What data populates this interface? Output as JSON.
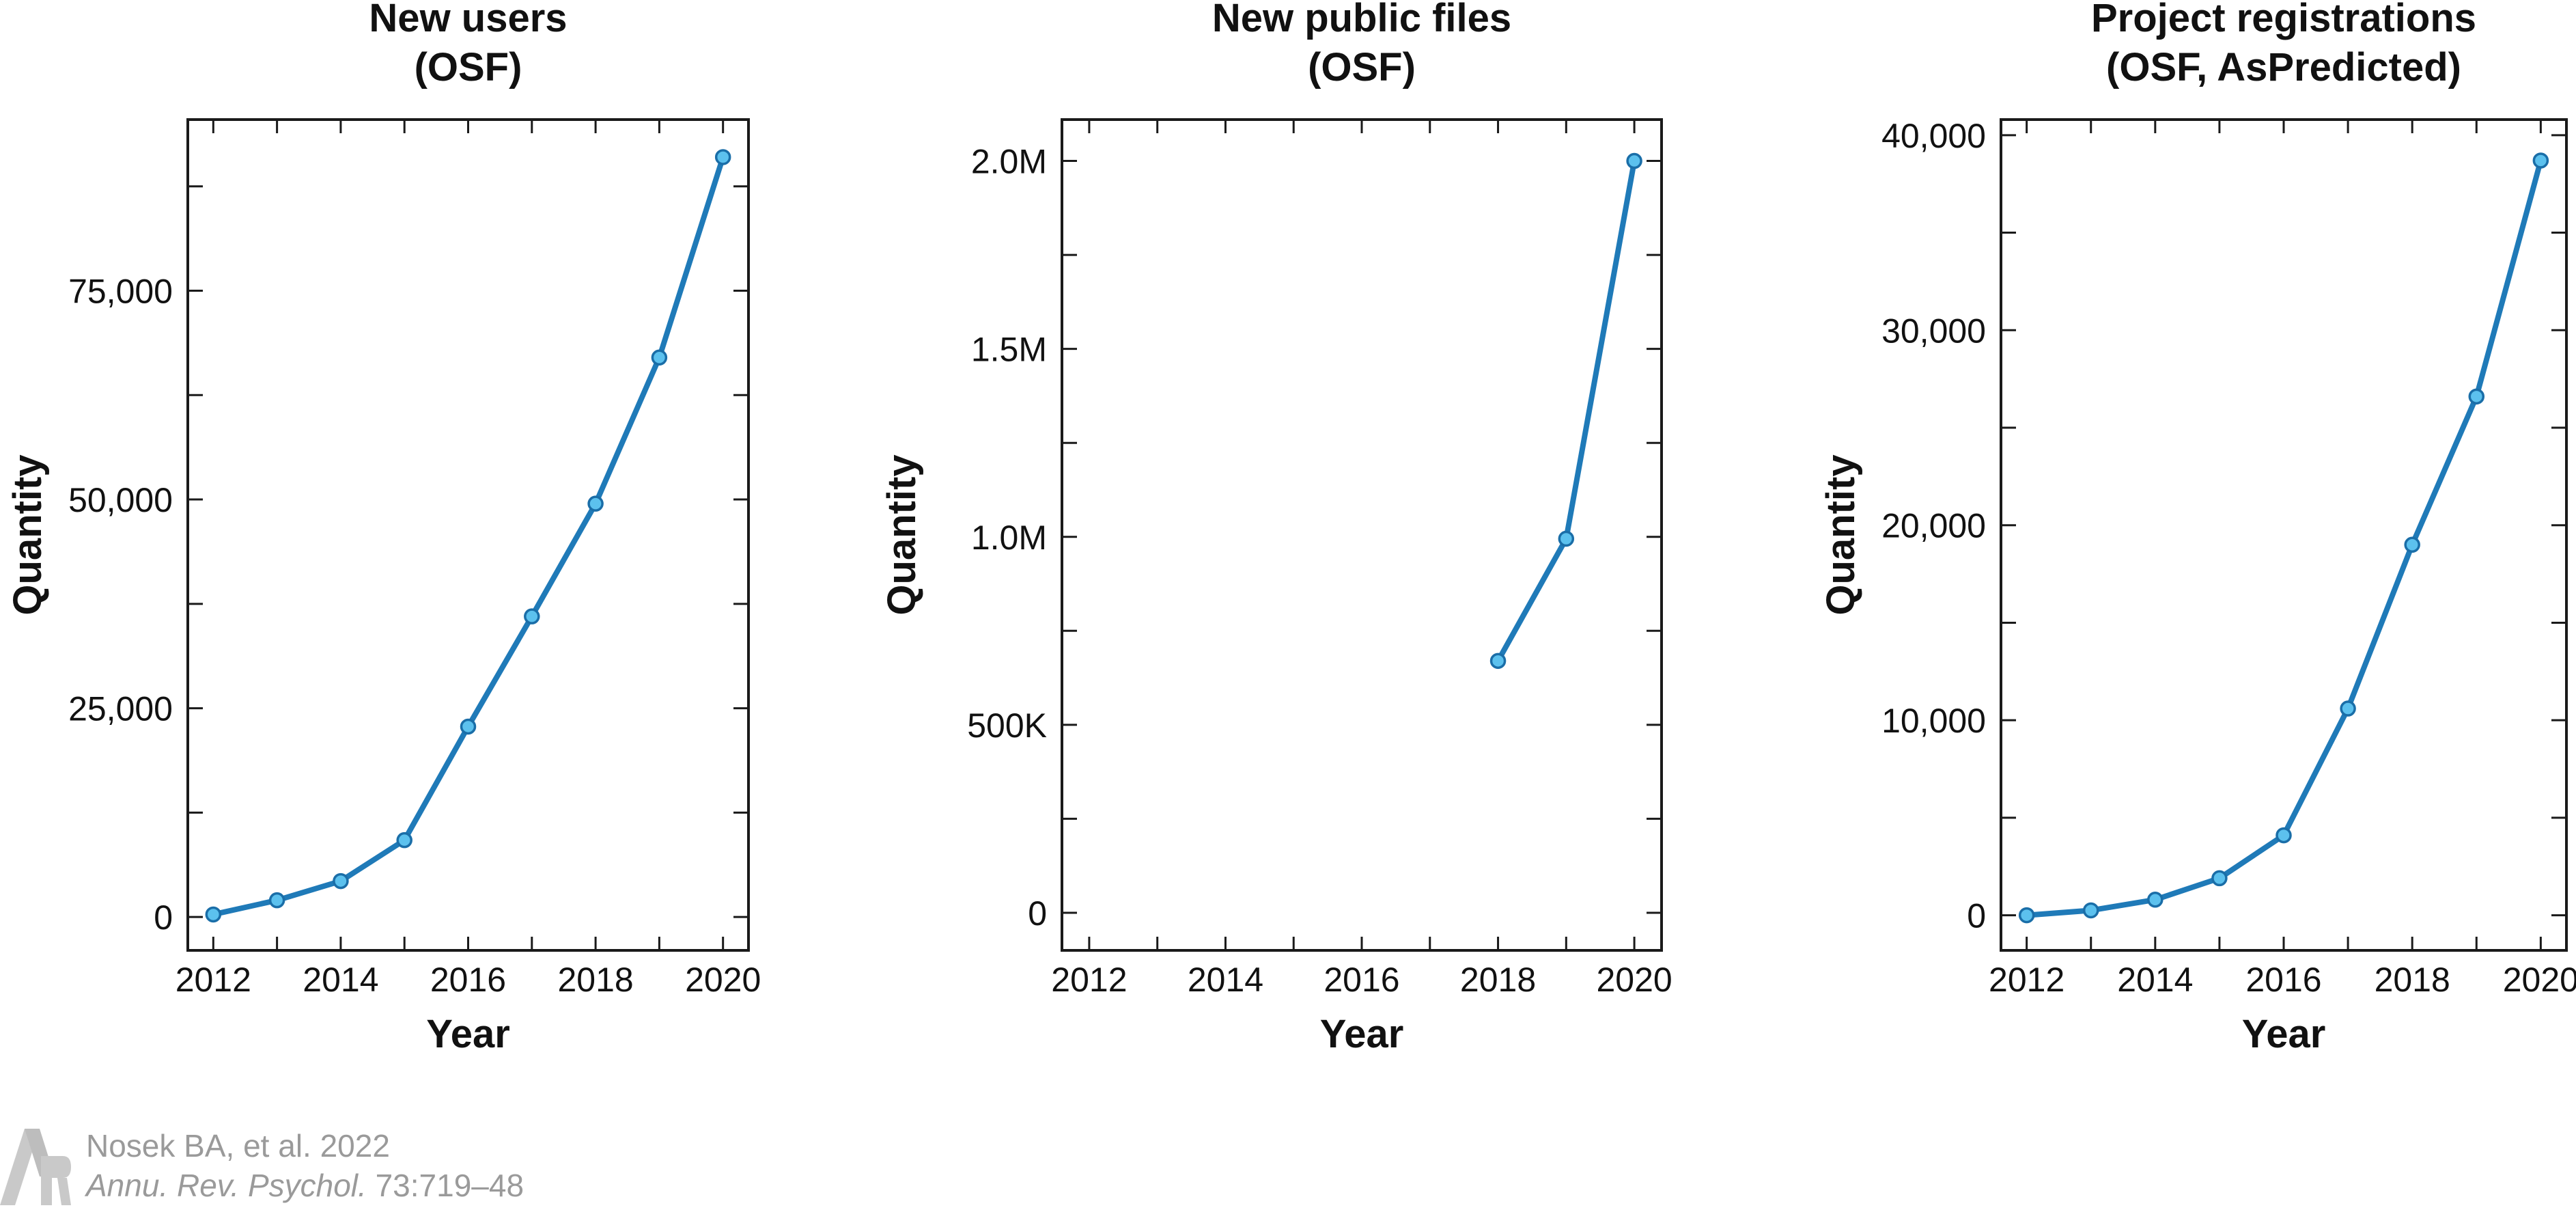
{
  "figure": {
    "citation": {
      "authors": "Nosek BA, et al. 2022",
      "journal": "Annu. Rev. Psychol.",
      "volume": "73:719–48"
    }
  },
  "colors": {
    "line": "#1f7ab8",
    "marker_fill": "#5cc1ee",
    "marker_stroke": "#1a6ea8",
    "axis": "#1a1a1a",
    "citation": "#9a9a9a"
  },
  "chart_data": [
    {
      "type": "line",
      "title": [
        "New users",
        "(OSF)"
      ],
      "xlabel": "Year",
      "ylabel": "Quantity",
      "x": [
        2012,
        2013,
        2014,
        2015,
        2016,
        2017,
        2018,
        2019,
        2020
      ],
      "series": [
        {
          "values": [
            300,
            2000,
            4300,
            9200,
            22800,
            36000,
            49500,
            67000,
            91000
          ]
        }
      ],
      "xlim": [
        2011.6,
        2020.4
      ],
      "ylim": [
        -4000,
        95500
      ],
      "xticks": [
        2012,
        2014,
        2016,
        2018,
        2020
      ],
      "xtick_labels": [
        "2012",
        "2014",
        "2016",
        "2018",
        "2020"
      ],
      "yticks": [
        0,
        25000,
        50000,
        75000
      ],
      "ytick_labels": [
        "0",
        "25,000",
        "50,000",
        "75,000"
      ],
      "grid": false
    },
    {
      "type": "line",
      "title": [
        "New public files",
        "(OSF)"
      ],
      "xlabel": "Year",
      "ylabel": "Quantity",
      "x": [
        2018,
        2019,
        2020
      ],
      "series": [
        {
          "values": [
            670000,
            995000,
            2000000
          ]
        }
      ],
      "xlim": [
        2011.6,
        2020.4
      ],
      "ylim": [
        -100000,
        2110000
      ],
      "xticks": [
        2012,
        2014,
        2016,
        2018,
        2020
      ],
      "xtick_labels": [
        "2012",
        "2014",
        "2016",
        "2018",
        "2020"
      ],
      "yticks": [
        0,
        500000,
        1000000,
        1500000,
        2000000
      ],
      "ytick_labels": [
        "0",
        "500K",
        "1.0M",
        "1.5M",
        "2.0M"
      ],
      "grid": false
    },
    {
      "type": "line",
      "title": [
        "Project registrations",
        "(OSF, AsPredicted)"
      ],
      "xlabel": "Year",
      "ylabel": "Quantity",
      "x": [
        2012,
        2013,
        2014,
        2015,
        2016,
        2017,
        2018,
        2019,
        2020
      ],
      "series": [
        {
          "values": [
            0,
            250,
            800,
            1900,
            4100,
            10600,
            19000,
            26600,
            38700
          ]
        }
      ],
      "xlim": [
        2011.6,
        2020.4
      ],
      "ylim": [
        -1800,
        40800
      ],
      "xticks": [
        2012,
        2014,
        2016,
        2018,
        2020
      ],
      "xtick_labels": [
        "2012",
        "2014",
        "2016",
        "2018",
        "2020"
      ],
      "yticks": [
        0,
        10000,
        20000,
        30000,
        40000
      ],
      "ytick_labels": [
        "0",
        "10,000",
        "20,000",
        "30,000",
        "40,000"
      ],
      "grid": false
    }
  ]
}
